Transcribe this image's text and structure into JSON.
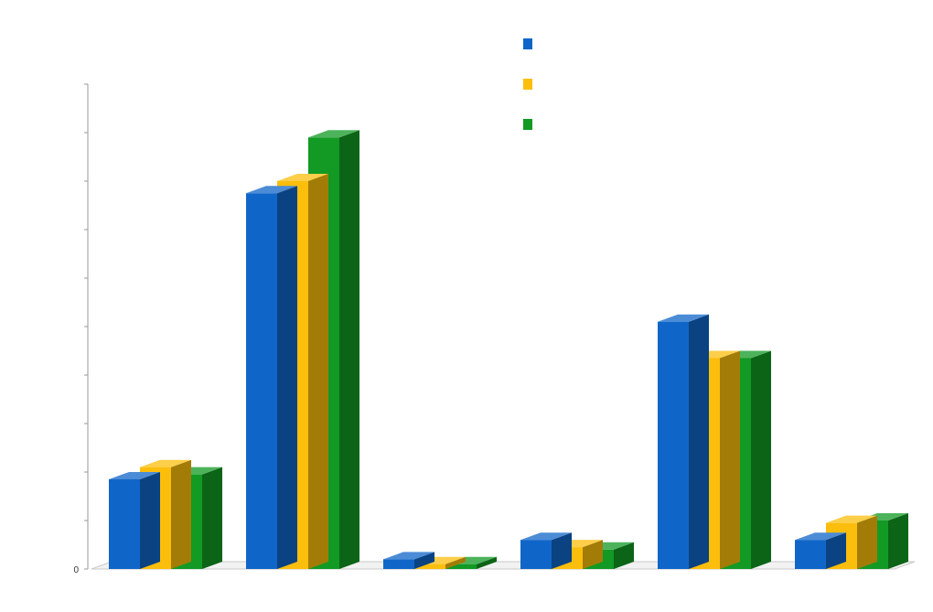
{
  "chart_data": {
    "type": "bar",
    "title": "",
    "xlabel": "",
    "ylabel": "",
    "categories": [
      "",
      "",
      "",
      "",
      "",
      ""
    ],
    "ylim": [
      0,
      20000
    ],
    "yticks": [
      0,
      2000,
      4000,
      6000,
      8000,
      10000,
      12000,
      14000,
      16000,
      18000,
      20000
    ],
    "ytick_labels": [
      "0",
      "",
      "",
      "",
      "",
      "",
      "",
      "",
      "",
      "",
      ""
    ],
    "grid": false,
    "legend_position": "top",
    "three_d": true,
    "series": [
      {
        "color": "#1066c8",
        "values": [
          3700,
          15500,
          400,
          1200,
          10200,
          1200
        ]
      },
      {
        "color": "#fbbe0c",
        "values": [
          4200,
          16000,
          200,
          900,
          8700,
          1900
        ]
      },
      {
        "color": "#129a24",
        "values": [
          3900,
          17800,
          200,
          800,
          8700,
          2000
        ]
      }
    ],
    "legend_labels": [
      "",
      "",
      ""
    ]
  }
}
